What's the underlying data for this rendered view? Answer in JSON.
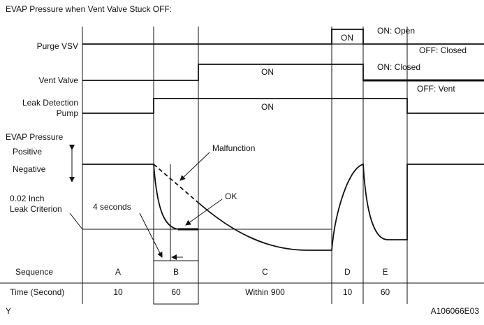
{
  "title": "EVAP Pressure when Vent Valve Stuck OFF:",
  "signals": [
    {
      "label": [
        "Purge VSV"
      ],
      "on_state": "ON: Open",
      "off_state": "OFF: Closed",
      "on_text": "ON"
    },
    {
      "label": [
        "Vent Valve"
      ],
      "on_state": "ON: Closed",
      "off_state": "OFF: Vent",
      "on_text": "ON"
    },
    {
      "label": [
        "Leak Detection",
        "Pump"
      ],
      "on_text": "ON"
    }
  ],
  "pressure": {
    "label": "EVAP Pressure",
    "positive": "Positive",
    "negative": "Negative",
    "criterion": [
      "0.02 Inch",
      "Leak Criterion"
    ],
    "malfunction": "Malfunction",
    "ok": "OK",
    "delay": "4 seconds"
  },
  "table": {
    "row_labels": [
      "Sequence",
      "Time (Second)"
    ],
    "sequence": [
      "A",
      "B",
      "C",
      "D",
      "E"
    ],
    "time": [
      "10",
      "60",
      "Within 900",
      "10",
      "60"
    ]
  },
  "footer": {
    "left": "Y",
    "right": "A106066E03"
  }
}
